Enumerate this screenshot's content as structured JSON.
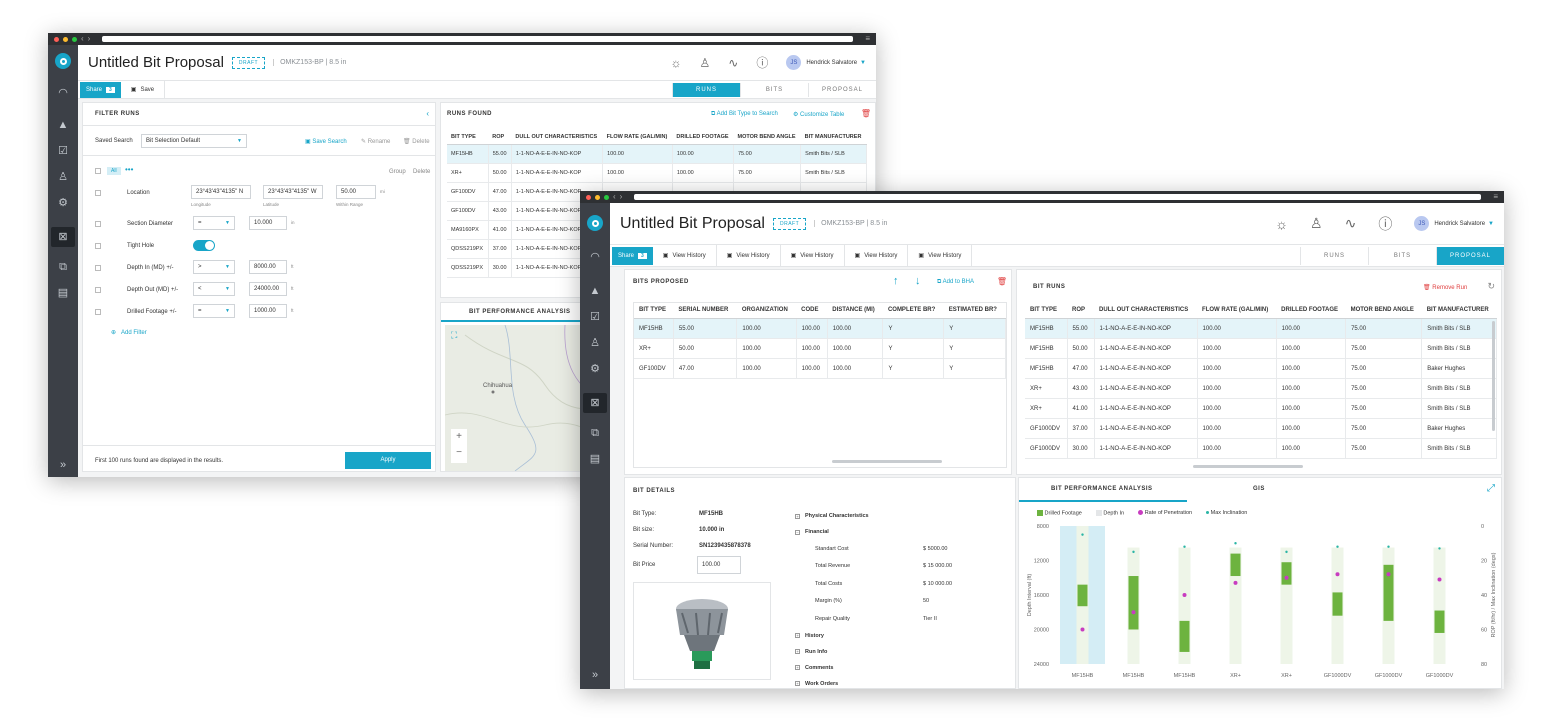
{
  "app": {
    "title": "Untitled Bit Proposal",
    "draft": "DRAFT",
    "subtitle": "OMKZ153-BP | 8.5 in",
    "user": "Hendrick Salvatore",
    "initials": "JS"
  },
  "colors": {
    "accent": "#18a5c8",
    "rail": "#3c4047",
    "green": "#6db33f",
    "magenta": "#c83cc0",
    "teal": "#2ab5a5"
  },
  "rail_icons": [
    "logo-icon",
    "gauge-icon",
    "navigation-icon",
    "checklist-icon",
    "users-icon",
    "gear-icon",
    "calculator-icon",
    "hierarchy-icon",
    "document-icon",
    "expand-chevrons-icon"
  ],
  "back": {
    "toolbar": {
      "share": "Share",
      "share_count": "3",
      "save": "Save"
    },
    "tabs": [
      "RUNS",
      "BITS",
      "PROPOSAL"
    ],
    "filter": {
      "heading": "FILTER RUNS",
      "saved_search_label": "Saved Search",
      "saved_search_value": "Bit Selection Default",
      "save_search": "Save Search",
      "rename": "Rename",
      "delete": "Delete",
      "all": "All",
      "group": "Group",
      "delete2": "Delete",
      "location": "Location",
      "lon": "23°43'43\"4135\" N",
      "lon_cap": "Longitude",
      "lat": "23°43'43\"4135\" W",
      "lat_cap": "Latitude",
      "radius": "50.00",
      "radius_unit": "mi",
      "radius_cap": "Within Range",
      "section_diameter": "Section Diameter",
      "sd_op": "=",
      "sd_val": "10.000",
      "sd_unit": "in",
      "tight_hole": "Tight Hole",
      "depth_in": "Depth In (MD) +/-",
      "di_op": ">",
      "di_val": "8000.00",
      "di_unit": "ft",
      "depth_out": "Depth Out (MD) +/-",
      "do_op": "<",
      "do_val": "24000.00",
      "do_unit": "ft",
      "drilled": "Drilled Footage +/-",
      "df_op": "=",
      "df_val": "1000.00",
      "df_unit": "ft",
      "add_filter": "Add Filter",
      "footer": "First 100 runs found are displayed in the results.",
      "apply": "Apply"
    },
    "runs": {
      "heading": "RUNS FOUND",
      "add_bit_type": "Add Bit Type to Search",
      "customize": "Customize Table",
      "columns": [
        "BIT TYPE",
        "ROP",
        "DULL OUT CHARACTERISTICS",
        "FLOW RATE (gal/min)",
        "DRILLED FOOTAGE",
        "MOTOR BEND ANGLE",
        "BIT MANUFACTURER"
      ],
      "rows": [
        [
          "MF15HB",
          "55.00",
          "1-1-NO-A-E-E-IN-NO-KOP",
          "100.00",
          "100.00",
          "75.00",
          "Smith Bits / SLB"
        ],
        [
          "XR+",
          "50.00",
          "1-1-NO-A-E-E-IN-NO-KOP",
          "100.00",
          "100.00",
          "75.00",
          "Smith Bits / SLB"
        ],
        [
          "GF100DV",
          "47.00",
          "1-1-NO-A-E-E-IN-NO-KOP",
          "",
          "",
          "",
          ""
        ],
        [
          "GF100DV",
          "43.00",
          "1-1-NO-A-E-E-IN-NO-KOP",
          "",
          "",
          "",
          ""
        ],
        [
          "MA9160PX",
          "41.00",
          "1-1-NO-A-E-E-IN-NO-KOP",
          "",
          "",
          "",
          ""
        ],
        [
          "QDSS219PX",
          "37.00",
          "1-1-NO-A-E-E-IN-NO-KOP",
          "",
          "",
          "",
          ""
        ],
        [
          "QDSS219PX",
          "30.00",
          "1-1-NO-A-E-E-IN-NO-KOP",
          "",
          "",
          "",
          ""
        ]
      ]
    },
    "bit_perf": "BIT PERFORMANCE ANALYSIS",
    "map_city": "Chihuahua"
  },
  "front": {
    "toolbar": {
      "share": "Share",
      "share_count": "3",
      "actions": [
        "View History",
        "View History",
        "View History",
        "View History",
        "View History"
      ]
    },
    "tabs": [
      "RUNS",
      "BITS",
      "PROPOSAL"
    ],
    "bits_proposed": {
      "heading": "BITS PROPOSED",
      "add_to_bha": "Add to BHA",
      "columns": [
        "BIT TYPE",
        "SERIAL NUMBER",
        "ORGANIZATION",
        "CODE",
        "DISTANCE (mi)",
        "COMPLETE BR?",
        "ESTIMATED BR?"
      ],
      "rows": [
        [
          "MF15HB",
          "55.00",
          "100.00",
          "100.00",
          "100.00",
          "Y",
          "Y"
        ],
        [
          "XR+",
          "50.00",
          "100.00",
          "100.00",
          "100.00",
          "Y",
          "Y"
        ],
        [
          "GF100DV",
          "47.00",
          "100.00",
          "100.00",
          "100.00",
          "Y",
          "Y"
        ]
      ]
    },
    "bit_runs": {
      "heading": "BIT RUNS",
      "remove": "Remove Run",
      "columns": [
        "BIT TYPE",
        "ROP",
        "DULL OUT CHARACTERISTICS",
        "FLOW RATE (gal/min)",
        "DRILLED FOOTAGE",
        "MOTOR BEND ANGLE",
        "BIT MANUFACTURER"
      ],
      "rows": [
        [
          "MF15HB",
          "55.00",
          "1-1-NO-A-E-E-IN-NO-KOP",
          "100.00",
          "100.00",
          "75.00",
          "Smith Bits / SLB"
        ],
        [
          "MF15HB",
          "50.00",
          "1-1-NO-A-E-E-IN-NO-KOP",
          "100.00",
          "100.00",
          "75.00",
          "Smith Bits / SLB"
        ],
        [
          "MF15HB",
          "47.00",
          "1-1-NO-A-E-E-IN-NO-KOP",
          "100.00",
          "100.00",
          "75.00",
          "Baker Hughes"
        ],
        [
          "XR+",
          "43.00",
          "1-1-NO-A-E-E-IN-NO-KOP",
          "100.00",
          "100.00",
          "75.00",
          "Smith Bits / SLB"
        ],
        [
          "XR+",
          "41.00",
          "1-1-NO-A-E-E-IN-NO-KOP",
          "100.00",
          "100.00",
          "75.00",
          "Smith Bits / SLB"
        ],
        [
          "GF1000DV",
          "37.00",
          "1-1-NO-A-E-E-IN-NO-KOP",
          "100.00",
          "100.00",
          "75.00",
          "Baker Hughes"
        ],
        [
          "GF1000DV",
          "30.00",
          "1-1-NO-A-E-E-IN-NO-KOP",
          "100.00",
          "100.00",
          "75.00",
          "Smith Bits / SLB"
        ]
      ]
    },
    "bit_details": {
      "heading": "BIT DETAILS",
      "bit_type_label": "Bit Type:",
      "bit_type": "MF15HB",
      "bit_size_label": "Bit size:",
      "bit_size": "10.000 in",
      "serial_label": "Serial Number:",
      "serial": "SN1239435878378",
      "price_label": "Bit Price",
      "price": "100.00",
      "sections": {
        "physical": "Physical Characteristics",
        "financial": "Financial",
        "history": "History",
        "run_info": "Run Info",
        "comments": "Comments",
        "work_orders": "Work Orders"
      },
      "financial": [
        [
          "Standart Cost",
          "$ 5000.00"
        ],
        [
          "Total Revenue",
          "$ 15 000.00"
        ],
        [
          "Total Costs",
          "$ 10 000.00"
        ],
        [
          "Margin (%)",
          "50"
        ],
        [
          "Repair Quality",
          "Tier II"
        ]
      ]
    },
    "analysis_tabs": [
      "BIT PERFORMANCE ANALYSIS",
      "GIS"
    ]
  },
  "chart_data": {
    "type": "bar",
    "categories": [
      "MF15HB",
      "MF15HB",
      "MF15HB",
      "XR+",
      "XR+",
      "GF1000DV",
      "GF1000DV",
      "GF1000DV"
    ],
    "legend": [
      "Drilled Footage",
      "Depth In",
      "Rate of Penetration",
      "Max Inclination"
    ],
    "ylabel": "Depth Interval (ft)",
    "y2label": "ROP (ft/hr) / Max Inclination (degs)",
    "ylim": [
      8000,
      24000
    ],
    "y2lim": [
      0,
      80
    ],
    "yticks": [
      "8000",
      "12000",
      "16000",
      "20000",
      "24000"
    ],
    "y2ticks": [
      "0",
      "20",
      "40",
      "60",
      "80"
    ],
    "depth_in": [
      8000,
      10500,
      10500,
      10500,
      10500,
      10500,
      10500,
      10500
    ],
    "drilled_from": [
      14800,
      13800,
      19000,
      11200,
      12200,
      15700,
      12500,
      17800
    ],
    "drilled_to": [
      17300,
      20000,
      22600,
      13800,
      14800,
      18400,
      19000,
      20400
    ],
    "rop": [
      60,
      50,
      40,
      33,
      30,
      28,
      28,
      31
    ],
    "max_inclination": [
      5,
      15,
      12,
      10,
      15,
      12,
      12,
      13
    ],
    "highlight_index": 0
  }
}
